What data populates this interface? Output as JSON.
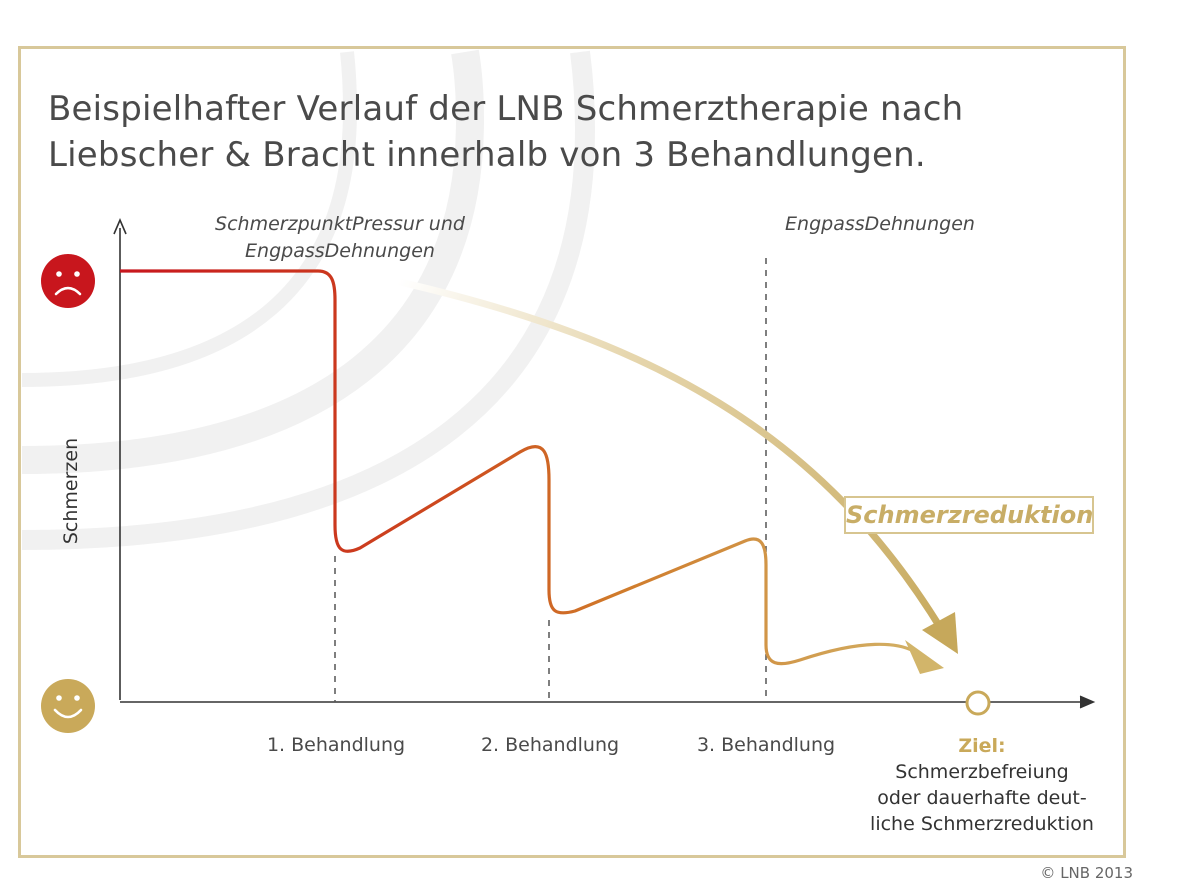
{
  "title": {
    "line1": "Beispielhafter Verlauf der LNB Schmerztherapie nach",
    "line2": "Liebscher & Bracht innerhalb von 3 Behandlungen."
  },
  "annotations": {
    "left_line1": "SchmerzpunktPressur und",
    "left_line2": "EngpassDehnungen",
    "right": "EngpassDehnungen"
  },
  "y_axis_label": "Schmerzen",
  "icons": {
    "top": "sad-face-icon",
    "bottom": "happy-face-icon"
  },
  "x_ticks": [
    "1. Behandlung",
    "2. Behandlung",
    "3. Behandlung"
  ],
  "goal": {
    "title": "Ziel:",
    "lines": [
      "Schmerzbefreiung",
      "oder dauerhafte deut-",
      "liche Schmerzreduktion"
    ]
  },
  "reduction_label": "Schmerzreduktion",
  "copyright": "© LNB 2013",
  "colors": {
    "frame": "#d8c89a",
    "pain_red": "#c8161d",
    "gold": "#c9a95a",
    "curve_start": "#c8161d",
    "curve_end": "#d2b56a",
    "axis": "#333333"
  }
}
